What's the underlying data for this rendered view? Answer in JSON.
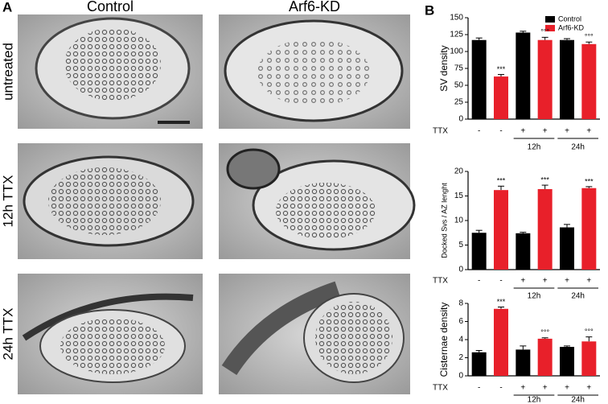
{
  "figure": {
    "panel_a": "A",
    "panel_b": "B",
    "columns": [
      "Control",
      "Arf6-KD"
    ],
    "rows": [
      "untreated",
      "12h TTX",
      "24h TTX"
    ],
    "legend": [
      {
        "name": "Control",
        "color": "#000000"
      },
      {
        "name": "Arf6-KD",
        "color": "#e8202a"
      }
    ]
  },
  "chart_data": [
    {
      "type": "bar",
      "y_label": "SV density",
      "x_label": "TTX",
      "categories": [
        "-",
        "-",
        "+",
        "+",
        "+",
        "+"
      ],
      "groups": [
        "12h",
        "24h"
      ],
      "values": [
        117,
        63,
        128,
        117,
        117,
        111
      ],
      "errors": [
        3,
        3,
        2,
        4,
        2,
        3
      ],
      "colors": [
        "#000000",
        "#e8202a",
        "#000000",
        "#e8202a",
        "#000000",
        "#e8202a"
      ],
      "significance": [
        null,
        "***",
        null,
        "°°°",
        null,
        "°°°"
      ],
      "ylim": [
        0,
        150
      ],
      "yticks": [
        0,
        25,
        50,
        75,
        100,
        125,
        150
      ]
    },
    {
      "type": "bar",
      "y_label": "Docked Svs / AZ lenght",
      "x_label": "TTX",
      "categories": [
        "-",
        "-",
        "+",
        "+",
        "+",
        "+"
      ],
      "groups": [
        "12h",
        "24h"
      ],
      "values": [
        7.5,
        16.2,
        7.4,
        16.4,
        8.6,
        16.6
      ],
      "errors": [
        0.5,
        0.8,
        0.2,
        0.8,
        0.6,
        0.3
      ],
      "colors": [
        "#000000",
        "#e8202a",
        "#000000",
        "#e8202a",
        "#000000",
        "#e8202a"
      ],
      "significance": [
        null,
        "***",
        null,
        "***",
        null,
        "***"
      ],
      "ylim": [
        0,
        20
      ],
      "yticks": [
        0,
        5,
        10,
        15,
        20
      ]
    },
    {
      "type": "bar",
      "y_label": "Cisternae density",
      "x_label": "TTX",
      "categories": [
        "-",
        "-",
        "+",
        "+",
        "+",
        "+"
      ],
      "groups": [
        "12h",
        "24h"
      ],
      "values": [
        2.6,
        7.4,
        2.9,
        4.1,
        3.2,
        3.8
      ],
      "errors": [
        0.2,
        0.2,
        0.4,
        0.1,
        0.1,
        0.5
      ],
      "colors": [
        "#000000",
        "#e8202a",
        "#000000",
        "#e8202a",
        "#000000",
        "#e8202a"
      ],
      "significance": [
        null,
        "***",
        null,
        "°°°",
        null,
        "°°°"
      ],
      "ylim": [
        0,
        8
      ],
      "yticks": [
        0,
        2,
        4,
        6,
        8
      ]
    }
  ]
}
